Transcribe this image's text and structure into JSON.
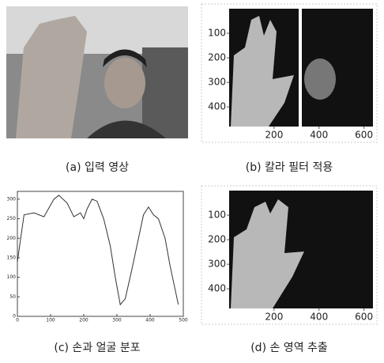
{
  "panels": [
    {
      "caption": "(a) 입력 영상"
    },
    {
      "caption": "(b) 칼라 필터 적용",
      "xlim": [
        0,
        640
      ],
      "ylim": [
        0,
        480
      ],
      "xticks": [
        200,
        400,
        600
      ],
      "yticks": [
        100,
        200,
        300,
        400
      ]
    },
    {
      "caption": "(c) 손과 얼굴 분포",
      "chart_data": {
        "type": "line",
        "color": "#333333",
        "x": [
          0,
          20,
          50,
          80,
          110,
          125,
          150,
          170,
          190,
          200,
          210,
          225,
          240,
          260,
          280,
          295,
          310,
          325,
          345,
          365,
          380,
          395,
          410,
          425,
          445,
          460,
          475,
          485
        ],
        "values": [
          140,
          260,
          265,
          255,
          300,
          310,
          290,
          255,
          265,
          250,
          275,
          300,
          295,
          250,
          180,
          100,
          30,
          45,
          120,
          200,
          260,
          280,
          260,
          250,
          200,
          130,
          70,
          30
        ],
        "xlim": [
          0,
          500
        ],
        "ylim": [
          0,
          320
        ],
        "xticks": [
          0,
          100,
          200,
          300,
          400,
          500
        ],
        "yticks": [
          0,
          50,
          100,
          150,
          200,
          250,
          300
        ]
      }
    },
    {
      "caption": "(d) 손 영역 추출",
      "xlim": [
        0,
        640
      ],
      "ylim": [
        0,
        480
      ],
      "xticks": [
        200,
        400,
        600
      ],
      "yticks": [
        100,
        200,
        300,
        400
      ]
    }
  ]
}
